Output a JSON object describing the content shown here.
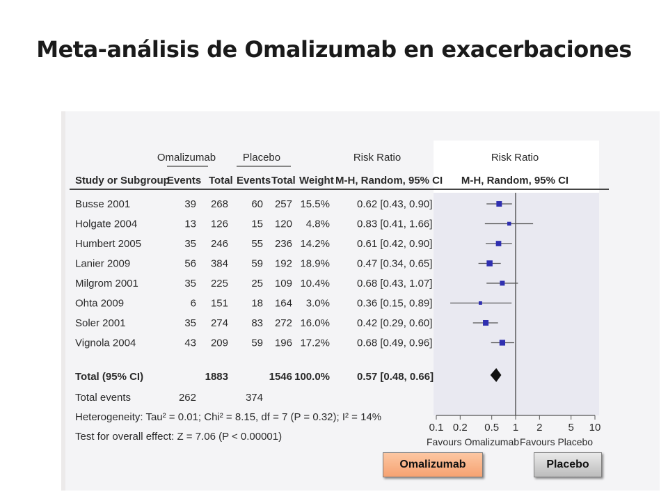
{
  "slide": {
    "title": "Meta-análisis de Omalizumab en exacerbaciones"
  },
  "table": {
    "group_headers": {
      "treatment": "Omalizumab",
      "control": "Placebo",
      "risk_ratio": "Risk Ratio",
      "plot_title": "Risk Ratio"
    },
    "columns": {
      "study": "Study or Subgroup",
      "events_t": "Events",
      "total_t": "Total",
      "events_c": "Events",
      "total_c": "Total",
      "weight": "Weight",
      "rr": "M-H, Random, 95% CI",
      "plot": "M-H, Random, 95% CI"
    },
    "rows": [
      {
        "study": "Busse 2001",
        "events_t": "39",
        "total_t": "268",
        "events_c": "60",
        "total_c": "257",
        "weight": "15.5%",
        "ci_text": "0.62 [0.43, 0.90]"
      },
      {
        "study": "Holgate 2004",
        "events_t": "13",
        "total_t": "126",
        "events_c": "15",
        "total_c": "120",
        "weight": "4.8%",
        "ci_text": "0.83 [0.41, 1.66]"
      },
      {
        "study": "Humbert 2005",
        "events_t": "35",
        "total_t": "246",
        "events_c": "55",
        "total_c": "236",
        "weight": "14.2%",
        "ci_text": "0.61 [0.42, 0.90]"
      },
      {
        "study": "Lanier 2009",
        "events_t": "56",
        "total_t": "384",
        "events_c": "59",
        "total_c": "192",
        "weight": "18.9%",
        "ci_text": "0.47 [0.34, 0.65]"
      },
      {
        "study": "Milgrom 2001",
        "events_t": "35",
        "total_t": "225",
        "events_c": "25",
        "total_c": "109",
        "weight": "10.4%",
        "ci_text": "0.68 [0.43, 1.07]"
      },
      {
        "study": "Ohta 2009",
        "events_t": "6",
        "total_t": "151",
        "events_c": "18",
        "total_c": "164",
        "weight": "3.0%",
        "ci_text": "0.36 [0.15, 0.89]"
      },
      {
        "study": "Soler 2001",
        "events_t": "35",
        "total_t": "274",
        "events_c": "83",
        "total_c": "272",
        "weight": "16.0%",
        "ci_text": "0.42 [0.29, 0.60]"
      },
      {
        "study": "Vignola 2004",
        "events_t": "43",
        "total_t": "209",
        "events_c": "59",
        "total_c": "196",
        "weight": "17.2%",
        "ci_text": "0.68 [0.49, 0.96]"
      }
    ],
    "total_row": {
      "label": "Total (95% CI)",
      "total_t": "1883",
      "total_c": "1546",
      "weight": "100.0%",
      "ci_text": "0.57 [0.48, 0.66]"
    },
    "events_row": {
      "label": "Total events",
      "events_t": "262",
      "events_c": "374"
    },
    "heterogeneity": "Heterogeneity: Tau² = 0.01; Chi² = 8.15, df = 7 (P = 0.32); I² = 14%",
    "overall_effect": "Test for overall effect: Z = 7.06 (P < 0.00001)",
    "x_ticks": [
      "0.1",
      "0.2",
      "0.5",
      "1",
      "2",
      "5",
      "10"
    ],
    "favours_left": "Favours Omalizumab",
    "favours_right": "Favours Placebo"
  },
  "buttons": {
    "omalizumab": "Omalizumab",
    "placebo": "Placebo"
  },
  "colors": {
    "marker": "#2f2fb0",
    "diamond": "#111111",
    "ci_line": "#555555"
  },
  "chart_data": {
    "type": "forest",
    "x_scale": "log",
    "xlim": [
      0.1,
      10
    ],
    "null_line": 1,
    "studies": [
      {
        "name": "Busse 2001",
        "rr": 0.62,
        "ci": [
          0.43,
          0.9
        ],
        "weight": 15.5
      },
      {
        "name": "Holgate 2004",
        "rr": 0.83,
        "ci": [
          0.41,
          1.66
        ],
        "weight": 4.8
      },
      {
        "name": "Humbert 2005",
        "rr": 0.61,
        "ci": [
          0.42,
          0.9
        ],
        "weight": 14.2
      },
      {
        "name": "Lanier 2009",
        "rr": 0.47,
        "ci": [
          0.34,
          0.65
        ],
        "weight": 18.9
      },
      {
        "name": "Milgrom 2001",
        "rr": 0.68,
        "ci": [
          0.43,
          1.07
        ],
        "weight": 10.4
      },
      {
        "name": "Ohta 2009",
        "rr": 0.36,
        "ci": [
          0.15,
          0.89
        ],
        "weight": 3.0
      },
      {
        "name": "Soler 2001",
        "rr": 0.42,
        "ci": [
          0.29,
          0.6
        ],
        "weight": 16.0
      },
      {
        "name": "Vignola 2004",
        "rr": 0.68,
        "ci": [
          0.49,
          0.96
        ],
        "weight": 17.2
      }
    ],
    "pooled": {
      "rr": 0.57,
      "ci": [
        0.48,
        0.66
      ]
    }
  }
}
